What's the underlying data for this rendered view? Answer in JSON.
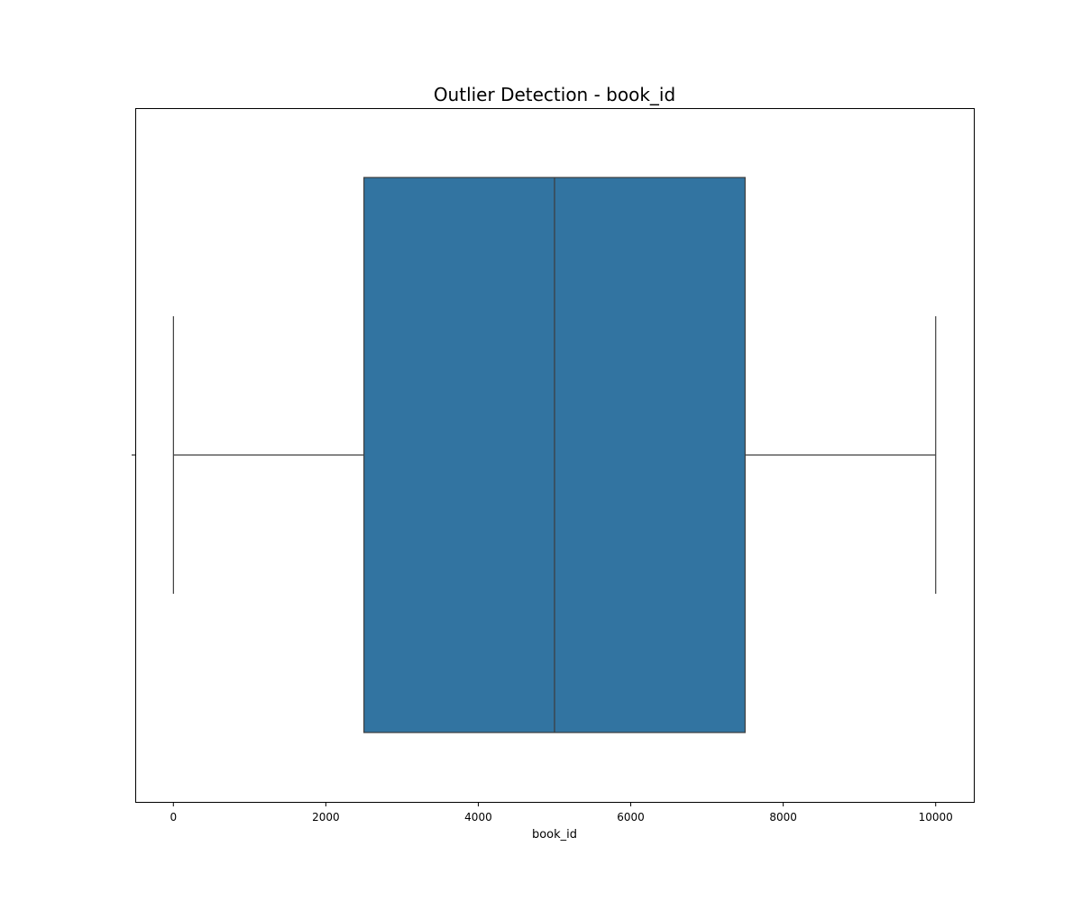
{
  "chart_data": {
    "type": "box",
    "title": "Outlier Detection - book_id",
    "xlabel": "book_id",
    "ylabel": "",
    "orientation": "horizontal",
    "xlim": [
      -500,
      10500
    ],
    "x_ticks": [
      0,
      2000,
      4000,
      6000,
      8000,
      10000
    ],
    "box": {
      "min": 1,
      "q1": 2500,
      "median": 5000,
      "q3": 7500,
      "max": 10000
    },
    "outliers": [],
    "grid": false,
    "box_color": "#3274a1",
    "line_color": "#3d3d3d"
  }
}
